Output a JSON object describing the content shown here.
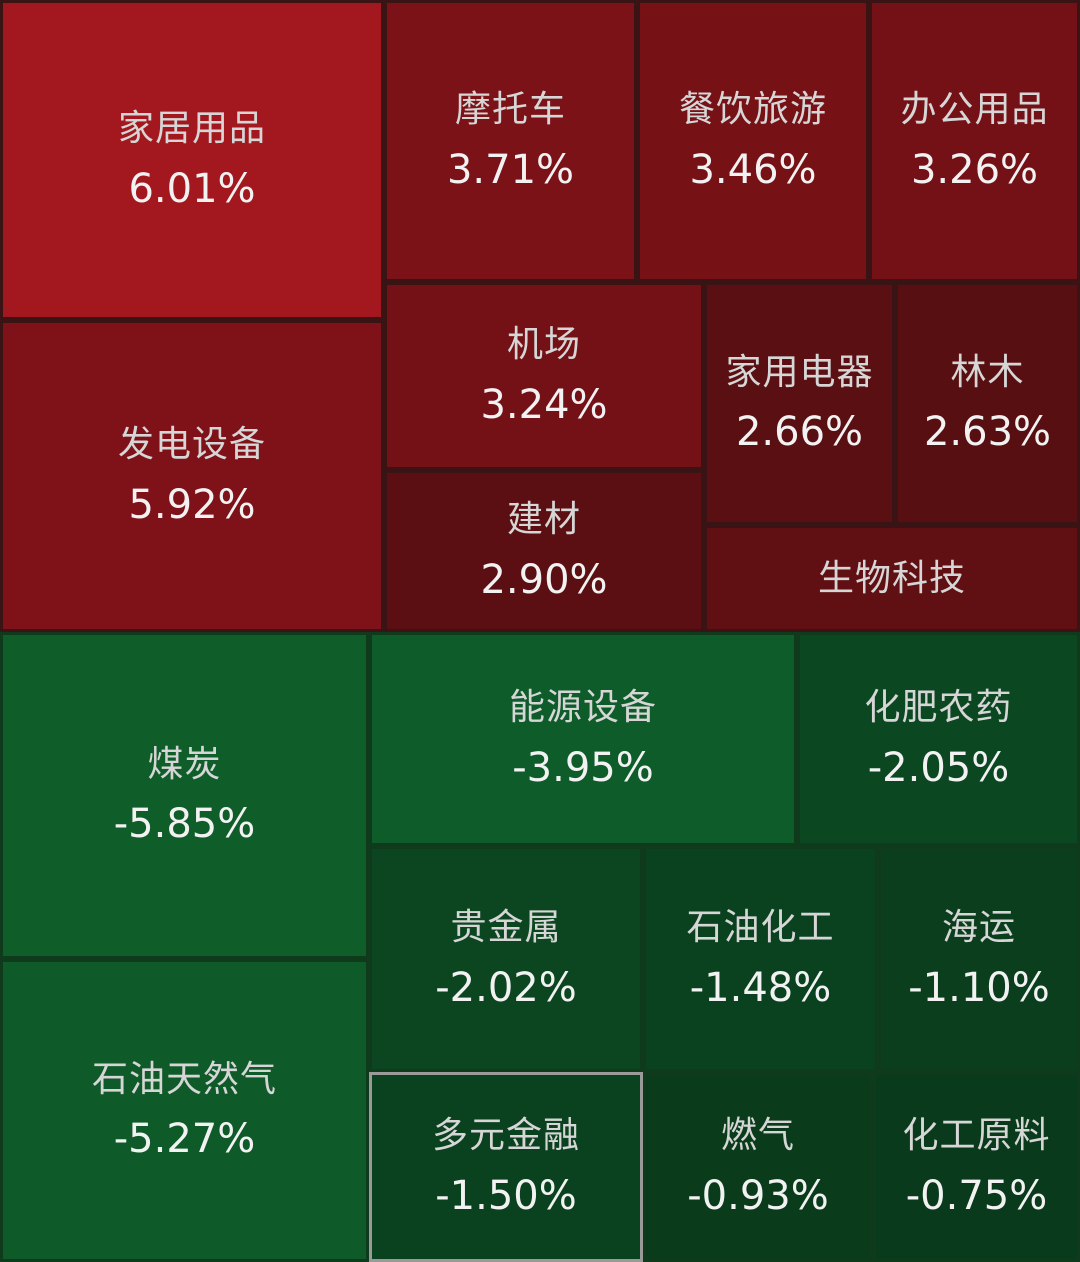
{
  "chart_data": {
    "type": "treemap",
    "title": "",
    "unit": "%",
    "items": [
      {
        "name": "家居用品",
        "value": 6.01,
        "label": "6.01%",
        "color": "#a3181f"
      },
      {
        "name": "发电设备",
        "value": 5.92,
        "label": "5.92%",
        "color": "#7e1218"
      },
      {
        "name": "摩托车",
        "value": 3.71,
        "label": "3.71%",
        "color": "#7a1217"
      },
      {
        "name": "餐饮旅游",
        "value": 3.46,
        "label": "3.46%",
        "color": "#761116"
      },
      {
        "name": "办公用品",
        "value": 3.26,
        "label": "3.26%",
        "color": "#741116"
      },
      {
        "name": "机场",
        "value": 3.24,
        "label": "3.24%",
        "color": "#741116"
      },
      {
        "name": "建材",
        "value": 2.9,
        "label": "2.90%",
        "color": "#5c0f12"
      },
      {
        "name": "家用电器",
        "value": 2.66,
        "label": "2.66%",
        "color": "#5a0f12"
      },
      {
        "name": "林木",
        "value": 2.63,
        "label": "2.63%",
        "color": "#580f12"
      },
      {
        "name": "生物科技",
        "value": null,
        "label": "",
        "color": "#600f13"
      },
      {
        "name": "煤炭",
        "value": -5.85,
        "label": "-5.85%",
        "color": "#0f5e2a"
      },
      {
        "name": "石油天然气",
        "value": -5.27,
        "label": "-5.27%",
        "color": "#0e5a28"
      },
      {
        "name": "能源设备",
        "value": -3.95,
        "label": "-3.95%",
        "color": "#0e5c2a"
      },
      {
        "name": "化肥农药",
        "value": -2.05,
        "label": "-2.05%",
        "color": "#0b4720"
      },
      {
        "name": "贵金属",
        "value": -2.02,
        "label": "-2.02%",
        "color": "#0b4620"
      },
      {
        "name": "石油化工",
        "value": -1.48,
        "label": "-1.48%",
        "color": "#0a411e"
      },
      {
        "name": "海运",
        "value": -1.1,
        "label": "-1.10%",
        "color": "#0a3e1d"
      },
      {
        "name": "多元金融",
        "value": -1.5,
        "label": "-1.50%",
        "color": "#0a411e",
        "selected": true
      },
      {
        "name": "燃气",
        "value": -0.93,
        "label": "-0.93%",
        "color": "#0a3c1c"
      },
      {
        "name": "化工原料",
        "value": -0.75,
        "label": "-0.75%",
        "color": "#093a1b"
      }
    ]
  }
}
